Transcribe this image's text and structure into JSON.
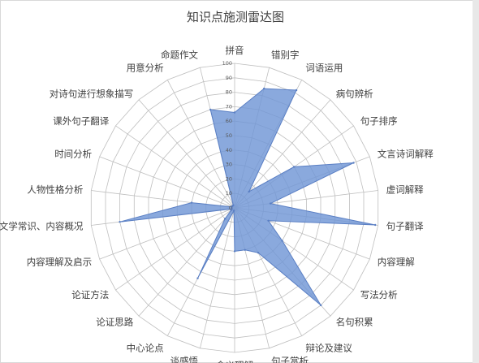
{
  "chart_data": {
    "type": "radar",
    "title": "知识点施测雷达图",
    "rmax": 100,
    "ticks": [
      0,
      10,
      20,
      30,
      40,
      50,
      60,
      70,
      80,
      90,
      100
    ],
    "grid": true,
    "categories": [
      "拼音",
      "错别字",
      "词语运用",
      "病句辨析",
      "句子排序",
      "文言诗词解释",
      "虚词解释",
      "句子翻译",
      "内容理解",
      "写法分析",
      "名句积累",
      "辩论及建议",
      "句子赏析",
      "含义理解",
      "谈感悟",
      "中心论点",
      "论证思路",
      "论证方法",
      "内容理解及启示",
      "文学常识、内容概况",
      "人物性格分析",
      "时间分析",
      "课外句子翻译",
      "对诗句进行想象描写",
      "用意分析",
      "命题作文"
    ],
    "series": [
      {
        "name": "",
        "color": "#7096d6",
        "values": [
          66,
          85,
          92,
          15,
          50,
          88,
          25,
          98,
          25,
          40,
          90,
          35,
          30,
          30,
          2,
          55,
          10,
          3,
          2,
          80,
          30,
          2,
          2,
          2,
          2,
          70
        ]
      }
    ]
  }
}
